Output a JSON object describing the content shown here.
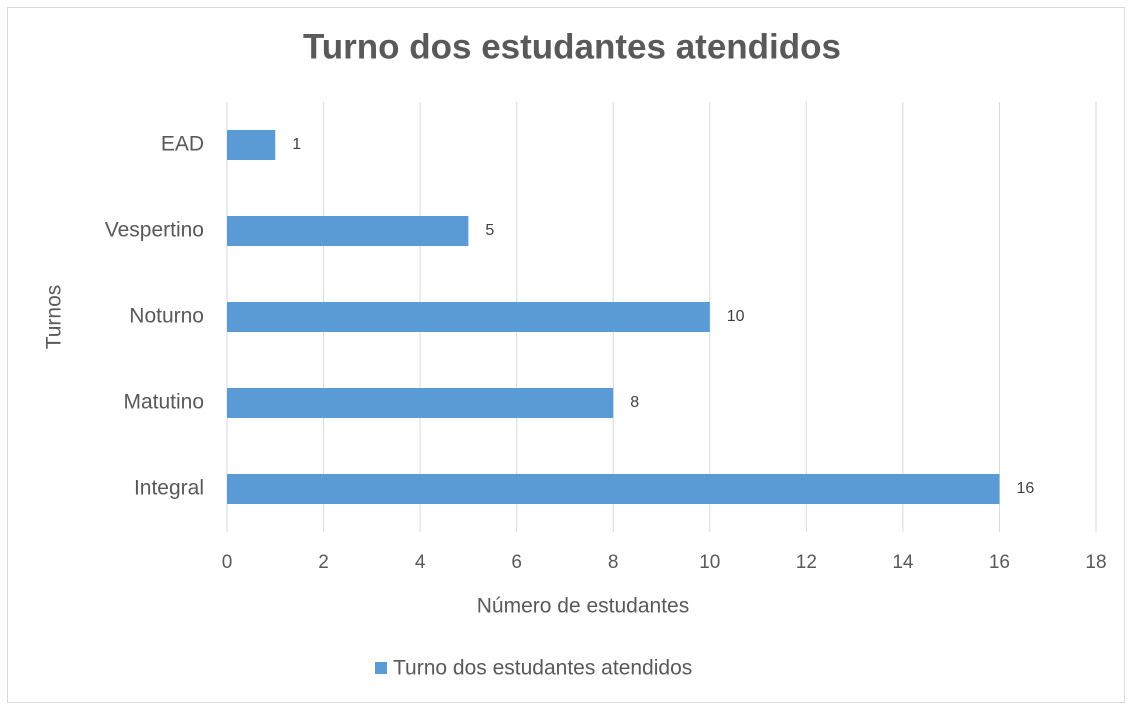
{
  "chart_data": {
    "type": "bar",
    "orientation": "horizontal",
    "title": "Turno dos estudantes atendidos",
    "x_label": "Número de estudantes",
    "y_label": "Turnos",
    "categories": [
      "Integral",
      "Matutino",
      "Noturno",
      "Vespertino",
      "EAD"
    ],
    "series": [
      {
        "name": "Turno dos estudantes atendidos",
        "color": "#5b9bd5",
        "values": [
          16,
          8,
          10,
          5,
          1
        ]
      }
    ],
    "xlim": [
      0,
      18
    ],
    "xticks": [
      0,
      2,
      4,
      6,
      8,
      10,
      12,
      14,
      16,
      18
    ],
    "grid": true,
    "legend": "bottom"
  }
}
